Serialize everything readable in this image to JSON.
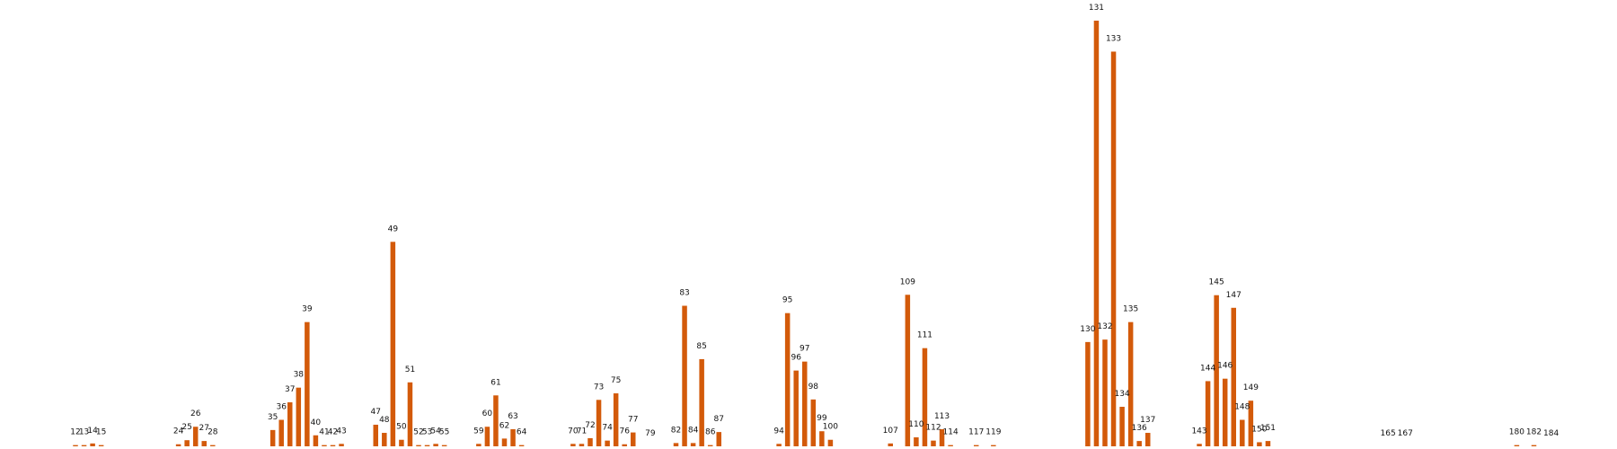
{
  "colors": {
    "bar": "#d35a0a",
    "label": "#111111",
    "background": "#ffffff"
  },
  "chart_data": {
    "type": "bar",
    "title": "",
    "xlabel": "",
    "ylabel": "",
    "grid": false,
    "legend": "none",
    "ylim": [
      0,
      105
    ],
    "categories": [
      "12",
      "13",
      "14",
      "15",
      "24",
      "25",
      "26",
      "27",
      "28",
      "35",
      "36",
      "37",
      "38",
      "39",
      "40",
      "41",
      "42",
      "43",
      "47",
      "48",
      "49",
      "50",
      "51",
      "52",
      "53",
      "54",
      "55",
      "59",
      "60",
      "61",
      "62",
      "63",
      "64",
      "70",
      "71",
      "72",
      "73",
      "74",
      "75",
      "76",
      "77",
      "79",
      "82",
      "83",
      "84",
      "85",
      "86",
      "87",
      "94",
      "95",
      "96",
      "97",
      "98",
      "99",
      "100",
      "107",
      "109",
      "110",
      "111",
      "112",
      "113",
      "114",
      "117",
      "119",
      "130",
      "131",
      "132",
      "133",
      "134",
      "135",
      "136",
      "137",
      "143",
      "144",
      "145",
      "146",
      "147",
      "148",
      "149",
      "150",
      "151",
      "165",
      "167",
      "180",
      "182",
      "184"
    ],
    "values": [
      0.3,
      0.3,
      0.7,
      0.3,
      0.5,
      1.5,
      4.8,
      1.3,
      0.3,
      4.0,
      6.5,
      10.8,
      14.4,
      30.5,
      2.7,
      0.3,
      0.3,
      0.6,
      5.3,
      3.3,
      50.2,
      1.6,
      15.7,
      0.3,
      0.3,
      0.6,
      0.3,
      0.6,
      4.8,
      12.5,
      1.9,
      4.2,
      0.3,
      0.6,
      0.6,
      2.0,
      11.4,
      1.4,
      13.0,
      0.5,
      3.4,
      0,
      0.8,
      34.5,
      0.8,
      21.4,
      0.3,
      3.5,
      0.6,
      32.7,
      18.6,
      20.8,
      11.5,
      3.7,
      1.6,
      0.7,
      37.2,
      2.2,
      24.1,
      1.4,
      4.2,
      0.3,
      0.3,
      0.3,
      25.6,
      104.5,
      26.2,
      96.9,
      9.7,
      30.5,
      1.3,
      3.3,
      0.6,
      16.0,
      37.1,
      16.6,
      34.0,
      6.5,
      11.2,
      1.0,
      1.3,
      0,
      0,
      0.3,
      0.3,
      0
    ]
  }
}
